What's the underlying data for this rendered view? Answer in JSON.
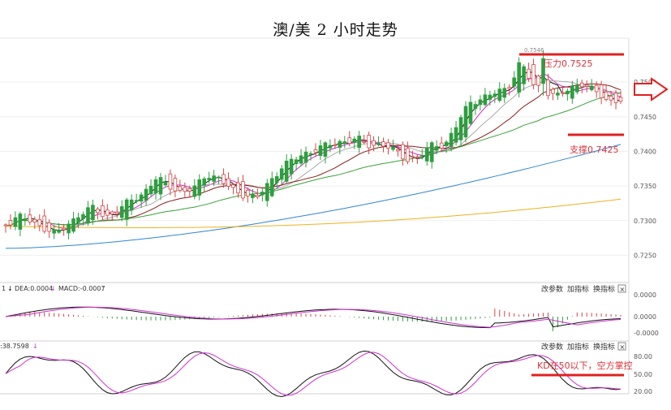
{
  "title": "澳/美 2 小时走势",
  "colors": {
    "up": "#2e9e3e",
    "down": "#d64545",
    "annotation": "#e02020",
    "ma_black": "#111111",
    "ma_magenta": "#d12fd1",
    "ma_gray": "#aaaaaa",
    "ma_darkred": "#8b1a1a",
    "ma_green": "#3aa33a",
    "ma_blue": "#2f86d6",
    "ma_orange": "#f0b020",
    "macd_line": "#111111",
    "signal_line": "#d12fd1"
  },
  "main_panel": {
    "y_ticks": [
      "0.7500",
      "0.7450",
      "0.7400",
      "0.7350",
      "0.7300",
      "0.7250"
    ],
    "high_marker": "0.7546",
    "resistance_label": "压力0.7525",
    "support_label": "支撑0.7425",
    "arrow_icon": "right-arrow-icon"
  },
  "macd_panel": {
    "label_prefix": "1",
    "dea_label": "DEA:0.0004",
    "macd_label": "MACD:-0.0007",
    "buttons": [
      "改参数",
      "加指标",
      "换指标"
    ],
    "close_icon": "×",
    "y_ticks": [
      "0.0000",
      "0.0000",
      "-0.0000"
    ]
  },
  "kd_panel": {
    "label": ":38.7598",
    "buttons": [
      "改参数",
      "加指标",
      "换指标"
    ],
    "close_icon": "×",
    "annotation": "KD在50以下，空方掌控",
    "y_ticks": [
      "80.00",
      "50.00",
      "20.00"
    ]
  },
  "chart_data": {
    "type": "candlestick",
    "title": "澳/美 2 小时走势",
    "ylim": [
      0.722,
      0.756
    ],
    "resistance": 0.7525,
    "support": 0.7425,
    "high_marker": 0.7546,
    "ohlc_sample": [
      [
        0.729,
        0.73,
        0.728,
        0.7295
      ],
      [
        0.7295,
        0.731,
        0.7288,
        0.7305
      ],
      [
        0.7305,
        0.732,
        0.7298,
        0.73
      ],
      [
        0.73,
        0.7315,
        0.7285,
        0.729
      ],
      [
        0.729,
        0.7298,
        0.727,
        0.728
      ],
      [
        0.728,
        0.73,
        0.7275,
        0.7296
      ],
      [
        0.7296,
        0.7315,
        0.729,
        0.731
      ],
      [
        0.731,
        0.7325,
        0.73,
        0.7318
      ],
      [
        0.7318,
        0.7322,
        0.73,
        0.7306
      ],
      [
        0.7306,
        0.732,
        0.7296,
        0.7314
      ],
      [
        0.7314,
        0.7335,
        0.731,
        0.733
      ],
      [
        0.733,
        0.7348,
        0.7322,
        0.734
      ],
      [
        0.734,
        0.7365,
        0.7335,
        0.736
      ],
      [
        0.736,
        0.737,
        0.7348,
        0.7352
      ],
      [
        0.7352,
        0.7358,
        0.7335,
        0.734
      ],
      [
        0.734,
        0.7352,
        0.733,
        0.7346
      ],
      [
        0.7346,
        0.7372,
        0.7342,
        0.7368
      ],
      [
        0.7368,
        0.7382,
        0.7355,
        0.736
      ],
      [
        0.736,
        0.7366,
        0.734,
        0.7345
      ],
      [
        0.7345,
        0.735,
        0.733,
        0.7338
      ],
      [
        0.7338,
        0.7346,
        0.7326,
        0.7332
      ],
      [
        0.7332,
        0.736,
        0.733,
        0.7355
      ],
      [
        0.7355,
        0.7385,
        0.735,
        0.7378
      ],
      [
        0.7378,
        0.7395,
        0.737,
        0.7388
      ],
      [
        0.7388,
        0.7405,
        0.738,
        0.7398
      ],
      [
        0.7398,
        0.7412,
        0.739,
        0.7405
      ],
      [
        0.7405,
        0.7418,
        0.7398,
        0.741
      ],
      [
        0.741,
        0.7422,
        0.7402,
        0.7415
      ],
      [
        0.7415,
        0.7425,
        0.7405,
        0.7418
      ],
      [
        0.7418,
        0.7422,
        0.74,
        0.7408
      ],
      [
        0.7408,
        0.7418,
        0.7398,
        0.7412
      ],
      [
        0.7412,
        0.742,
        0.7395,
        0.74
      ],
      [
        0.74,
        0.7405,
        0.738,
        0.7388
      ],
      [
        0.7388,
        0.7398,
        0.7382,
        0.7394
      ],
      [
        0.7394,
        0.7412,
        0.739,
        0.7408
      ],
      [
        0.7408,
        0.7415,
        0.74,
        0.741
      ],
      [
        0.741,
        0.7445,
        0.7408,
        0.744
      ],
      [
        0.744,
        0.7478,
        0.7435,
        0.747
      ],
      [
        0.747,
        0.7485,
        0.746,
        0.7478
      ],
      [
        0.7478,
        0.749,
        0.747,
        0.7484
      ],
      [
        0.7484,
        0.7498,
        0.7476,
        0.749
      ],
      [
        0.749,
        0.7546,
        0.7488,
        0.753
      ],
      [
        0.753,
        0.754,
        0.749,
        0.7495
      ],
      [
        0.7495,
        0.7505,
        0.748,
        0.7488
      ],
      [
        0.7488,
        0.7498,
        0.7472,
        0.748
      ],
      [
        0.748,
        0.7496,
        0.7475,
        0.749
      ],
      [
        0.749,
        0.7505,
        0.7484,
        0.75
      ],
      [
        0.75,
        0.751,
        0.748,
        0.7485
      ],
      [
        0.7485,
        0.7492,
        0.7466,
        0.7472
      ],
      [
        0.7472,
        0.748,
        0.7466,
        0.7476
      ]
    ],
    "moving_averages": [
      "black",
      "magenta",
      "gray",
      "darkred",
      "green",
      "blue",
      "orange"
    ],
    "indicators": [
      "MACD",
      "KD"
    ]
  }
}
